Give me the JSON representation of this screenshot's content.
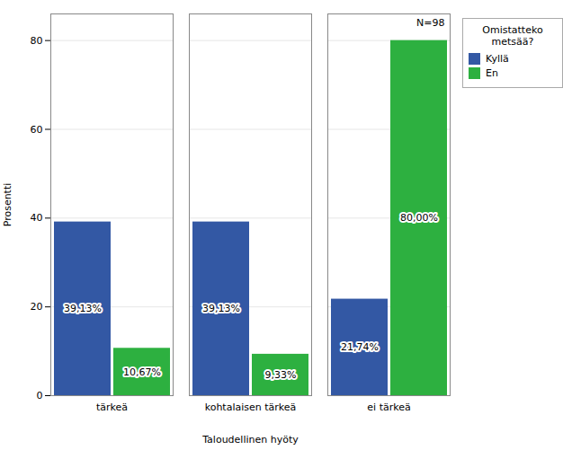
{
  "chart_data": {
    "type": "bar",
    "xlabel": "Taloudellinen hyöty",
    "ylabel": "Prosentti",
    "categories": [
      "tärkeä",
      "kohtalaisen tärkeä",
      "ei tärkeä"
    ],
    "series": [
      {
        "name": "Kyllä",
        "color": "#3358a4",
        "values": [
          39.13,
          39.13,
          21.74
        ],
        "value_labels": [
          "39,13%",
          "39,13%",
          "21,74%"
        ]
      },
      {
        "name": "En",
        "color": "#2db040",
        "values": [
          10.67,
          9.33,
          80.0
        ],
        "value_labels": [
          "10,67%",
          "9,33%",
          "80,00%"
        ]
      }
    ],
    "ylim": [
      0,
      86
    ],
    "yticks": [
      0,
      20,
      40,
      60,
      80
    ],
    "grid": true,
    "legend": "right",
    "legend_title": "Omistatteko\nmetsää?",
    "annotations": [
      "N=98"
    ],
    "data_labels": true
  }
}
